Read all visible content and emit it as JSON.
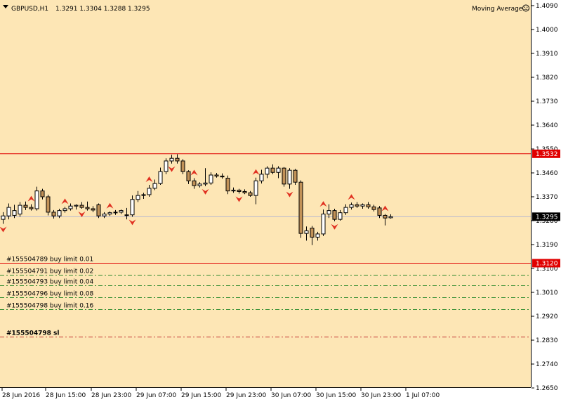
{
  "header": {
    "symbol_tf": "GBPUSD,H1",
    "ohlc": "1.3291 1.3304 1.3288 1.3295",
    "indicator": "Moving Average",
    "indicator_icon": "smiley-icon"
  },
  "colors": {
    "background": "#fde6b5",
    "bull_body": "#ffffff",
    "bear_body": "#c29258",
    "outline": "#000000",
    "resistance_line": "#e00000",
    "current_price_line": "#b7b7d0",
    "order_line": "#2c8a2c",
    "sl_line": "#c03030",
    "fractal": "#e03020"
  },
  "orders": [
    {
      "label": "#155504789 buy limit 0.01",
      "price": 1.312
    },
    {
      "label": "#155504791 buy limit 0.02",
      "price": 1.3075
    },
    {
      "label": "#155504793 buy limit 0.04",
      "price": 1.3035
    },
    {
      "label": "#155504796 buy limit 0.08",
      "price": 1.299
    },
    {
      "label": "#155504798 buy limit 0.16",
      "price": 1.2945
    }
  ],
  "sl": {
    "label": "#155504798 sl",
    "price": 1.2842
  },
  "price_tags": {
    "resistance": "1.3532",
    "current": "1.3295",
    "order_level": "1.3120"
  },
  "chart_data": {
    "type": "candlestick",
    "symbol": "GBPUSD",
    "timeframe": "H1",
    "y_ticks": [
      "1.4090",
      "1.4000",
      "1.3910",
      "1.3820",
      "1.3730",
      "1.3640",
      "1.3550",
      "1.3460",
      "1.3370",
      "1.3280",
      "1.3190",
      "1.3100",
      "1.3010",
      "1.2920",
      "1.2830",
      "1.2740",
      "1.2650"
    ],
    "ylim": [
      1.265,
      1.409
    ],
    "x_ticks": [
      "28 Jun 2016",
      "28 Jun 15:00",
      "28 Jun 23:00",
      "29 Jun 07:00",
      "29 Jun 15:00",
      "29 Jun 23:00",
      "30 Jun 07:00",
      "30 Jun 15:00",
      "30 Jun 23:00",
      "1 Jul 07:00"
    ],
    "levels": {
      "resistance": 1.3532,
      "current": 1.3295,
      "buy_limit_1": 1.312
    },
    "candles": [
      {
        "o": 1.3285,
        "h": 1.3312,
        "l": 1.3268,
        "c": 1.3298
      },
      {
        "o": 1.3298,
        "h": 1.3345,
        "l": 1.3285,
        "c": 1.333
      },
      {
        "o": 1.33,
        "h": 1.334,
        "l": 1.329,
        "c": 1.3318
      },
      {
        "o": 1.3305,
        "h": 1.335,
        "l": 1.3295,
        "c": 1.3338
      },
      {
        "o": 1.3338,
        "h": 1.3352,
        "l": 1.332,
        "c": 1.333
      },
      {
        "o": 1.333,
        "h": 1.3342,
        "l": 1.3318,
        "c": 1.3325
      },
      {
        "o": 1.3325,
        "h": 1.3408,
        "l": 1.3318,
        "c": 1.3392
      },
      {
        "o": 1.3392,
        "h": 1.34,
        "l": 1.336,
        "c": 1.337
      },
      {
        "o": 1.337,
        "h": 1.3378,
        "l": 1.33,
        "c": 1.3312
      },
      {
        "o": 1.3312,
        "h": 1.332,
        "l": 1.3288,
        "c": 1.3298
      },
      {
        "o": 1.3298,
        "h": 1.3325,
        "l": 1.329,
        "c": 1.3318
      },
      {
        "o": 1.3318,
        "h": 1.3332,
        "l": 1.331,
        "c": 1.3325
      },
      {
        "o": 1.3325,
        "h": 1.3345,
        "l": 1.3318,
        "c": 1.3335
      },
      {
        "o": 1.3335,
        "h": 1.3342,
        "l": 1.3322,
        "c": 1.3338
      },
      {
        "o": 1.3338,
        "h": 1.335,
        "l": 1.3325,
        "c": 1.333
      },
      {
        "o": 1.333,
        "h": 1.3352,
        "l": 1.3318,
        "c": 1.3325
      },
      {
        "o": 1.3325,
        "h": 1.3335,
        "l": 1.3312,
        "c": 1.332
      },
      {
        "o": 1.334,
        "h": 1.3345,
        "l": 1.329,
        "c": 1.3298
      },
      {
        "o": 1.3298,
        "h": 1.3312,
        "l": 1.329,
        "c": 1.3305
      },
      {
        "o": 1.3305,
        "h": 1.3315,
        "l": 1.3298,
        "c": 1.331
      },
      {
        "o": 1.331,
        "h": 1.332,
        "l": 1.3302,
        "c": 1.3312
      },
      {
        "o": 1.3312,
        "h": 1.3322,
        "l": 1.3305,
        "c": 1.3318
      },
      {
        "o": 1.33,
        "h": 1.3328,
        "l": 1.3285,
        "c": 1.3302
      },
      {
        "o": 1.3302,
        "h": 1.3375,
        "l": 1.3295,
        "c": 1.336
      },
      {
        "o": 1.336,
        "h": 1.3392,
        "l": 1.335,
        "c": 1.3375
      },
      {
        "o": 1.3375,
        "h": 1.3385,
        "l": 1.3362,
        "c": 1.3378
      },
      {
        "o": 1.3378,
        "h": 1.3415,
        "l": 1.337,
        "c": 1.3402
      },
      {
        "o": 1.3402,
        "h": 1.3435,
        "l": 1.3395,
        "c": 1.342
      },
      {
        "o": 1.342,
        "h": 1.348,
        "l": 1.3415,
        "c": 1.3465
      },
      {
        "o": 1.3465,
        "h": 1.3515,
        "l": 1.3455,
        "c": 1.3505
      },
      {
        "o": 1.3505,
        "h": 1.3528,
        "l": 1.3495,
        "c": 1.3515
      },
      {
        "o": 1.3515,
        "h": 1.353,
        "l": 1.3495,
        "c": 1.3505
      },
      {
        "o": 1.3505,
        "h": 1.3512,
        "l": 1.3455,
        "c": 1.3465
      },
      {
        "o": 1.3465,
        "h": 1.347,
        "l": 1.3418,
        "c": 1.343
      },
      {
        "o": 1.343,
        "h": 1.344,
        "l": 1.34,
        "c": 1.3412
      },
      {
        "o": 1.3412,
        "h": 1.3425,
        "l": 1.3405,
        "c": 1.3418
      },
      {
        "o": 1.3418,
        "h": 1.3478,
        "l": 1.341,
        "c": 1.3422
      },
      {
        "o": 1.3422,
        "h": 1.3462,
        "l": 1.3415,
        "c": 1.3452
      },
      {
        "o": 1.3452,
        "h": 1.346,
        "l": 1.3442,
        "c": 1.3448
      },
      {
        "o": 1.3448,
        "h": 1.3458,
        "l": 1.3438,
        "c": 1.3445
      },
      {
        "o": 1.344,
        "h": 1.345,
        "l": 1.338,
        "c": 1.3392
      },
      {
        "o": 1.3392,
        "h": 1.3405,
        "l": 1.3385,
        "c": 1.3395
      },
      {
        "o": 1.3395,
        "h": 1.34,
        "l": 1.3382,
        "c": 1.339
      },
      {
        "o": 1.339,
        "h": 1.3398,
        "l": 1.338,
        "c": 1.3385
      },
      {
        "o": 1.3385,
        "h": 1.3392,
        "l": 1.337,
        "c": 1.3375
      },
      {
        "o": 1.3375,
        "h": 1.3442,
        "l": 1.3342,
        "c": 1.343
      },
      {
        "o": 1.343,
        "h": 1.3472,
        "l": 1.342,
        "c": 1.3455
      },
      {
        "o": 1.3455,
        "h": 1.3485,
        "l": 1.344,
        "c": 1.3478
      },
      {
        "o": 1.3478,
        "h": 1.3492,
        "l": 1.3455,
        "c": 1.3462
      },
      {
        "o": 1.3462,
        "h": 1.3485,
        "l": 1.344,
        "c": 1.3478
      },
      {
        "o": 1.3478,
        "h": 1.3482,
        "l": 1.3408,
        "c": 1.3418
      },
      {
        "o": 1.3418,
        "h": 1.3478,
        "l": 1.34,
        "c": 1.347
      },
      {
        "o": 1.347,
        "h": 1.3475,
        "l": 1.3415,
        "c": 1.3425
      },
      {
        "o": 1.3425,
        "h": 1.3432,
        "l": 1.3215,
        "c": 1.3232
      },
      {
        "o": 1.3232,
        "h": 1.3258,
        "l": 1.3205,
        "c": 1.3242
      },
      {
        "o": 1.3252,
        "h": 1.326,
        "l": 1.3188,
        "c": 1.3218
      },
      {
        "o": 1.3218,
        "h": 1.3238,
        "l": 1.3205,
        "c": 1.323
      },
      {
        "o": 1.323,
        "h": 1.3322,
        "l": 1.3222,
        "c": 1.3305
      },
      {
        "o": 1.3305,
        "h": 1.3342,
        "l": 1.329,
        "c": 1.3318
      },
      {
        "o": 1.3318,
        "h": 1.3325,
        "l": 1.3278,
        "c": 1.3285
      },
      {
        "o": 1.3285,
        "h": 1.332,
        "l": 1.328,
        "c": 1.331
      },
      {
        "o": 1.331,
        "h": 1.3342,
        "l": 1.3302,
        "c": 1.333
      },
      {
        "o": 1.333,
        "h": 1.3348,
        "l": 1.3322,
        "c": 1.334
      },
      {
        "o": 1.334,
        "h": 1.335,
        "l": 1.3328,
        "c": 1.3335
      },
      {
        "o": 1.3335,
        "h": 1.3345,
        "l": 1.3325,
        "c": 1.334
      },
      {
        "o": 1.334,
        "h": 1.335,
        "l": 1.3325,
        "c": 1.3332
      },
      {
        "o": 1.3332,
        "h": 1.334,
        "l": 1.3315,
        "c": 1.3322
      },
      {
        "o": 1.3328,
        "h": 1.3335,
        "l": 1.329,
        "c": 1.33
      },
      {
        "o": 1.33,
        "h": 1.3305,
        "l": 1.3262,
        "c": 1.329
      },
      {
        "o": 1.3291,
        "h": 1.3304,
        "l": 1.3288,
        "c": 1.3295
      }
    ],
    "fractals_up": [
      5,
      11,
      19,
      26,
      34,
      45,
      57,
      62,
      68
    ],
    "fractals_down": [
      0,
      14,
      23,
      30,
      36,
      42,
      51,
      59
    ]
  }
}
